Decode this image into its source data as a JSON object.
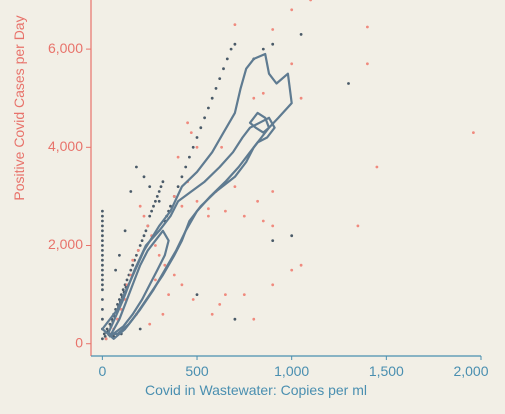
{
  "chart_data": {
    "type": "scatter",
    "title": "",
    "xlabel": "Covid in Wastewater: Copies per ml",
    "ylabel": "Positive Covid Cases per Day",
    "xlim": [
      -60,
      2000
    ],
    "ylim": [
      -250,
      7000
    ],
    "grid": false,
    "colors": {
      "background": "#f2efe6",
      "x_axis": "#4a8fb0",
      "y_axis": "#e8736b",
      "dark_points": "#4a5a68",
      "light_points": "#f08a7e",
      "contour": "#5f7b91"
    },
    "x_axis": {
      "ticks": [
        0,
        500,
        1000,
        1500,
        2000
      ],
      "tick_labels": [
        "0",
        "500",
        "1,000",
        "1,500",
        "2,000"
      ]
    },
    "y_axis": {
      "ticks": [
        0,
        2000,
        4000,
        6000
      ],
      "tick_labels": [
        "0",
        "2,000",
        "4,000",
        "6,000"
      ]
    },
    "series": [
      {
        "color": "#4a5a68",
        "points": [
          [
            0,
            1800
          ],
          [
            0,
            1900
          ],
          [
            0,
            2000
          ],
          [
            0,
            2100
          ],
          [
            0,
            2200
          ],
          [
            0,
            2300
          ],
          [
            0,
            2400
          ],
          [
            0,
            2500
          ],
          [
            0,
            2600
          ],
          [
            0,
            2700
          ],
          [
            0,
            1100
          ],
          [
            0,
            1200
          ],
          [
            0,
            1300
          ],
          [
            0,
            1400
          ],
          [
            0,
            1500
          ],
          [
            0,
            1600
          ],
          [
            0,
            1700
          ],
          [
            0,
            900
          ],
          [
            0,
            700
          ],
          [
            0,
            500
          ],
          [
            0,
            300
          ],
          [
            0,
            100
          ],
          [
            10,
            200
          ],
          [
            15,
            150
          ],
          [
            20,
            100
          ],
          [
            25,
            300
          ],
          [
            30,
            250
          ],
          [
            35,
            180
          ],
          [
            40,
            400
          ],
          [
            45,
            350
          ],
          [
            50,
            500
          ],
          [
            55,
            450
          ],
          [
            60,
            600
          ],
          [
            65,
            550
          ],
          [
            70,
            700
          ],
          [
            75,
            650
          ],
          [
            80,
            800
          ],
          [
            85,
            750
          ],
          [
            90,
            900
          ],
          [
            95,
            850
          ],
          [
            100,
            1000
          ],
          [
            105,
            950
          ],
          [
            110,
            1100
          ],
          [
            115,
            1050
          ],
          [
            120,
            1200
          ],
          [
            125,
            1150
          ],
          [
            130,
            1300
          ],
          [
            140,
            1400
          ],
          [
            150,
            1500
          ],
          [
            160,
            1600
          ],
          [
            170,
            1700
          ],
          [
            180,
            1800
          ],
          [
            190,
            1900
          ],
          [
            200,
            2000
          ],
          [
            210,
            2100
          ],
          [
            220,
            2200
          ],
          [
            230,
            2300
          ],
          [
            240,
            2400
          ],
          [
            250,
            2600
          ],
          [
            260,
            2700
          ],
          [
            270,
            2800
          ],
          [
            280,
            2900
          ],
          [
            290,
            3000
          ],
          [
            300,
            3100
          ],
          [
            310,
            3200
          ],
          [
            320,
            3300
          ],
          [
            330,
            2500
          ],
          [
            340,
            2600
          ],
          [
            350,
            2700
          ],
          [
            360,
            2800
          ],
          [
            380,
            3000
          ],
          [
            400,
            3200
          ],
          [
            420,
            3400
          ],
          [
            440,
            3600
          ],
          [
            460,
            3800
          ],
          [
            480,
            4000
          ],
          [
            500,
            4200
          ],
          [
            520,
            4400
          ],
          [
            540,
            4600
          ],
          [
            560,
            4800
          ],
          [
            580,
            5000
          ],
          [
            600,
            5200
          ],
          [
            620,
            5400
          ],
          [
            640,
            5600
          ],
          [
            660,
            5800
          ],
          [
            680,
            6000
          ],
          [
            700,
            6100
          ],
          [
            800,
            5800
          ],
          [
            850,
            6000
          ],
          [
            900,
            6100
          ],
          [
            1050,
            6300
          ],
          [
            1300,
            5300
          ],
          [
            1000,
            2200
          ],
          [
            900,
            2100
          ],
          [
            700,
            500
          ],
          [
            500,
            1000
          ],
          [
            60,
            150
          ],
          [
            100,
            200
          ],
          [
            200,
            300
          ],
          [
            300,
            2900
          ],
          [
            250,
            3200
          ],
          [
            220,
            3400
          ],
          [
            180,
            3600
          ],
          [
            150,
            3100
          ],
          [
            120,
            2300
          ],
          [
            90,
            1800
          ],
          [
            70,
            1500
          ]
        ]
      },
      {
        "color": "#f08a7e",
        "points": [
          [
            1100,
            7000
          ],
          [
            1000,
            6800
          ],
          [
            700,
            6500
          ],
          [
            900,
            6400
          ],
          [
            1400,
            6450
          ],
          [
            1000,
            5700
          ],
          [
            1400,
            5700
          ],
          [
            850,
            5100
          ],
          [
            800,
            5000
          ],
          [
            1050,
            5000
          ],
          [
            450,
            4500
          ],
          [
            470,
            4300
          ],
          [
            500,
            4000
          ],
          [
            630,
            4000
          ],
          [
            400,
            3800
          ],
          [
            450,
            3300
          ],
          [
            600,
            3100
          ],
          [
            700,
            3200
          ],
          [
            820,
            2900
          ],
          [
            900,
            3100
          ],
          [
            1450,
            3600
          ],
          [
            1960,
            4300
          ],
          [
            380,
            3000
          ],
          [
            420,
            2800
          ],
          [
            500,
            2900
          ],
          [
            560,
            2750
          ],
          [
            650,
            2700
          ],
          [
            750,
            2600
          ],
          [
            850,
            2500
          ],
          [
            900,
            2400
          ],
          [
            1350,
            2400
          ],
          [
            1050,
            1600
          ],
          [
            1000,
            1500
          ],
          [
            900,
            1200
          ],
          [
            750,
            1000
          ],
          [
            620,
            800
          ],
          [
            800,
            500
          ],
          [
            580,
            600
          ],
          [
            480,
            900
          ],
          [
            420,
            1200
          ],
          [
            380,
            1400
          ],
          [
            330,
            1600
          ],
          [
            300,
            1800
          ],
          [
            280,
            2000
          ],
          [
            260,
            2200
          ],
          [
            240,
            2400
          ],
          [
            220,
            2600
          ],
          [
            200,
            2800
          ],
          [
            190,
            1900
          ],
          [
            160,
            1700
          ],
          [
            150,
            1400
          ],
          [
            130,
            1200
          ],
          [
            120,
            900
          ],
          [
            100,
            700
          ],
          [
            80,
            500
          ],
          [
            60,
            300
          ],
          [
            40,
            200
          ],
          [
            20,
            100
          ],
          [
            560,
            2600
          ],
          [
            650,
            1000
          ],
          [
            350,
            1000
          ],
          [
            320,
            600
          ],
          [
            250,
            400
          ],
          [
            180,
            600
          ],
          [
            280,
            1300
          ]
        ]
      }
    ],
    "contours": [
      [
        [
          0,
          300
        ],
        [
          80,
          700
        ],
        [
          150,
          1300
        ],
        [
          220,
          1900
        ],
        [
          300,
          2400
        ],
        [
          360,
          2700
        ],
        [
          420,
          3200
        ],
        [
          500,
          3500
        ],
        [
          580,
          3900
        ],
        [
          640,
          4300
        ],
        [
          700,
          4700
        ],
        [
          730,
          5200
        ],
        [
          760,
          5600
        ],
        [
          800,
          5800
        ],
        [
          860,
          5900
        ],
        [
          880,
          5500
        ],
        [
          920,
          5300
        ],
        [
          980,
          5500
        ],
        [
          1000,
          4900
        ],
        [
          930,
          4600
        ],
        [
          880,
          4400
        ],
        [
          840,
          4200
        ],
        [
          800,
          4000
        ],
        [
          760,
          3700
        ],
        [
          700,
          3400
        ],
        [
          600,
          3100
        ],
        [
          520,
          2800
        ],
        [
          460,
          2500
        ],
        [
          420,
          2100
        ],
        [
          380,
          1800
        ],
        [
          320,
          1400
        ],
        [
          250,
          1000
        ],
        [
          180,
          600
        ],
        [
          120,
          300
        ],
        [
          60,
          100
        ],
        [
          0,
          300
        ]
      ],
      [
        [
          30,
          200
        ],
        [
          110,
          900
        ],
        [
          170,
          1500
        ],
        [
          230,
          2000
        ],
        [
          300,
          2300
        ],
        [
          360,
          2600
        ],
        [
          400,
          2900
        ],
        [
          470,
          3100
        ],
        [
          540,
          3300
        ],
        [
          620,
          3600
        ],
        [
          690,
          3900
        ],
        [
          740,
          4200
        ],
        [
          780,
          4400
        ],
        [
          830,
          4500
        ],
        [
          880,
          4600
        ],
        [
          910,
          4400
        ],
        [
          870,
          4200
        ],
        [
          820,
          4100
        ],
        [
          780,
          3900
        ],
        [
          720,
          3600
        ],
        [
          650,
          3300
        ],
        [
          570,
          3000
        ],
        [
          500,
          2700
        ],
        [
          440,
          2300
        ],
        [
          390,
          1900
        ],
        [
          330,
          1500
        ],
        [
          270,
          1100
        ],
        [
          200,
          700
        ],
        [
          140,
          400
        ],
        [
          80,
          200
        ],
        [
          30,
          200
        ]
      ],
      [
        [
          40,
          150
        ],
        [
          90,
          500
        ],
        [
          130,
          900
        ],
        [
          170,
          1300
        ],
        [
          200,
          1600
        ],
        [
          240,
          1900
        ],
        [
          280,
          2100
        ],
        [
          320,
          2300
        ],
        [
          350,
          2100
        ],
        [
          330,
          1800
        ],
        [
          290,
          1500
        ],
        [
          250,
          1200
        ],
        [
          210,
          900
        ],
        [
          160,
          600
        ],
        [
          110,
          350
        ],
        [
          40,
          150
        ]
      ],
      [
        [
          780,
          4500
        ],
        [
          820,
          4700
        ],
        [
          860,
          4600
        ],
        [
          880,
          4400
        ],
        [
          850,
          4300
        ],
        [
          810,
          4400
        ],
        [
          780,
          4500
        ]
      ]
    ]
  }
}
